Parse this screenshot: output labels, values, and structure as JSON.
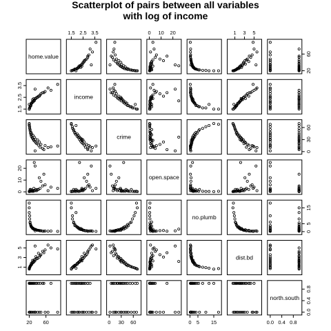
{
  "chart_data": {
    "type": "scatter",
    "subtype": "pairs-matrix",
    "title_lines": [
      "Scatterplot of pairs between all variables",
      "with log of income"
    ],
    "variables": [
      "home.value",
      "income",
      "crime",
      "open.space",
      "no.plumb",
      "dist.bd",
      "north.south"
    ],
    "axis_ranges": {
      "home.value": [
        16,
        92
      ],
      "income": [
        1.2,
        3.9
      ],
      "crime": [
        -3,
        76
      ],
      "open.space": [
        -1,
        26
      ],
      "no.plumb": [
        -1,
        19
      ],
      "dist.bd": [
        -0.3,
        6.3
      ],
      "north.south": [
        -0.05,
        1.05
      ]
    },
    "ticks": {
      "top": [
        {
          "var": "income",
          "values": [
            1.5,
            2.5,
            3.5
          ],
          "labels": [
            "1.5",
            "2.5",
            "3.5"
          ]
        },
        {
          "var": "open.space",
          "values": [
            0,
            10,
            20
          ],
          "labels": [
            "0",
            "10",
            "20"
          ]
        },
        {
          "var": "dist.bd",
          "values": [
            1,
            3,
            5
          ],
          "labels": [
            "1",
            "3",
            "5"
          ]
        }
      ],
      "bottom": [
        {
          "var": "home.value",
          "values": [
            20,
            60
          ],
          "labels": [
            "20",
            "60"
          ]
        },
        {
          "var": "crime",
          "values": [
            0,
            30,
            60
          ],
          "labels": [
            "0",
            "30",
            "60"
          ]
        },
        {
          "var": "no.plumb",
          "values": [
            0,
            5,
            15
          ],
          "labels": [
            "0",
            "5",
            "15"
          ]
        },
        {
          "var": "north.south",
          "values": [
            0.0,
            0.4,
            0.8
          ],
          "labels": [
            "0.0",
            "0.4",
            "0.8"
          ]
        }
      ],
      "left": [
        {
          "var": "income",
          "values": [
            1.5,
            2.5,
            3.5
          ],
          "labels": [
            "1.5",
            "2.5",
            "3.5"
          ]
        },
        {
          "var": "open.space",
          "values": [
            0,
            10,
            20
          ],
          "labels": [
            "0",
            "10",
            "20"
          ]
        },
        {
          "var": "dist.bd",
          "values": [
            1,
            3,
            5
          ],
          "labels": [
            "1",
            "3",
            "5"
          ]
        }
      ],
      "right": [
        {
          "var": "home.value",
          "values": [
            20,
            60
          ],
          "labels": [
            "20",
            "60"
          ]
        },
        {
          "var": "crime",
          "values": [
            0,
            30,
            60
          ],
          "labels": [
            "0",
            "30",
            "60"
          ]
        },
        {
          "var": "no.plumb",
          "values": [
            0,
            5,
            15
          ],
          "labels": [
            "0",
            "5",
            "15"
          ]
        },
        {
          "var": "north.south",
          "values": [
            0.0,
            0.4,
            0.8
          ],
          "labels": [
            "0.0",
            "0.4",
            "0.8"
          ]
        }
      ]
    },
    "grid": false,
    "legend": "none",
    "marker": "open-circle",
    "marker_color": "#000000",
    "observations": [
      {
        "home.value": 72,
        "income": 3.1,
        "crime": 12,
        "open.space": 4,
        "no.plumb": 0.4,
        "dist.bd": 5.0,
        "north.south": 1
      },
      {
        "home.value": 52,
        "income": 2.9,
        "crime": 8,
        "open.space": 5,
        "no.plumb": 0.3,
        "dist.bd": 4.3,
        "north.south": 1
      },
      {
        "home.value": 46,
        "income": 2.7,
        "crime": 11,
        "open.space": 3,
        "no.plumb": 0.5,
        "dist.bd": 3.4,
        "north.south": 1
      },
      {
        "home.value": 42,
        "income": 2.6,
        "crime": 16,
        "open.space": 2,
        "no.plumb": 0.8,
        "dist.bd": 3.9,
        "north.south": 1
      },
      {
        "home.value": 38,
        "income": 2.5,
        "crime": 20,
        "open.space": 1,
        "no.plumb": 1.0,
        "dist.bd": 2.9,
        "north.south": 1
      },
      {
        "home.value": 36,
        "income": 2.4,
        "crime": 22,
        "open.space": 2,
        "no.plumb": 1.2,
        "dist.bd": 3.2,
        "north.south": 1
      },
      {
        "home.value": 33,
        "income": 2.3,
        "crime": 26,
        "open.space": 1,
        "no.plumb": 1.3,
        "dist.bd": 2.6,
        "north.south": 1
      },
      {
        "home.value": 31,
        "income": 2.4,
        "crime": 28,
        "open.space": 3,
        "no.plumb": 1.5,
        "dist.bd": 2.3,
        "north.south": 1
      },
      {
        "home.value": 30,
        "income": 2.2,
        "crime": 30,
        "open.space": 0.5,
        "no.plumb": 1.8,
        "dist.bd": 2.1,
        "north.south": 1
      },
      {
        "home.value": 28,
        "income": 2.3,
        "crime": 33,
        "open.space": 1,
        "no.plumb": 2.0,
        "dist.bd": 2.4,
        "north.south": 1
      },
      {
        "home.value": 27,
        "income": 2.1,
        "crime": 35,
        "open.space": 0.5,
        "no.plumb": 2.5,
        "dist.bd": 2.0,
        "north.south": 1
      },
      {
        "home.value": 25,
        "income": 2.0,
        "crime": 38,
        "open.space": 1,
        "no.plumb": 3.0,
        "dist.bd": 1.8,
        "north.south": 1
      },
      {
        "home.value": 24,
        "income": 1.9,
        "crime": 42,
        "open.space": 2,
        "no.plumb": 3.5,
        "dist.bd": 1.5,
        "north.south": 1
      },
      {
        "home.value": 23,
        "income": 1.8,
        "crime": 46,
        "open.space": 1,
        "no.plumb": 4.5,
        "dist.bd": 1.3,
        "north.south": 1
      },
      {
        "home.value": 22,
        "income": 1.7,
        "crime": 52,
        "open.space": 0.5,
        "no.plumb": 5.5,
        "dist.bd": 1.2,
        "north.south": 1
      },
      {
        "home.value": 21,
        "income": 1.6,
        "crime": 58,
        "open.space": 0.5,
        "no.plumb": 8,
        "dist.bd": 1.0,
        "north.south": 1
      },
      {
        "home.value": 20,
        "income": 1.9,
        "crime": 65,
        "open.space": 0.3,
        "no.plumb": 12,
        "dist.bd": 0.8,
        "north.south": 1
      },
      {
        "home.value": 20,
        "income": 1.5,
        "crime": 70,
        "open.space": 0.2,
        "no.plumb": 15,
        "dist.bd": 0.6,
        "north.south": 1
      },
      {
        "home.value": 88,
        "income": 3.6,
        "crime": 14,
        "open.space": 3,
        "no.plumb": 0.2,
        "dist.bd": 4.8,
        "north.south": 0
      },
      {
        "home.value": 65,
        "income": 3.3,
        "crime": 10,
        "open.space": 1,
        "no.plumb": 0.3,
        "dist.bd": 5.6,
        "north.south": 0
      },
      {
        "home.value": 58,
        "income": 3.0,
        "crime": 15,
        "open.space": 6,
        "no.plumb": 0.4,
        "dist.bd": 4.6,
        "north.south": 0
      },
      {
        "home.value": 48,
        "income": 2.8,
        "crime": 18,
        "open.space": 9,
        "no.plumb": 0.6,
        "dist.bd": 3.6,
        "north.south": 0
      },
      {
        "home.value": 44,
        "income": 2.6,
        "crime": 24,
        "open.space": 12,
        "no.plumb": 0.7,
        "dist.bd": 3.1,
        "north.south": 0
      },
      {
        "home.value": 40,
        "income": 2.5,
        "crime": 29,
        "open.space": 2,
        "no.plumb": 0.9,
        "dist.bd": 2.8,
        "north.south": 0
      },
      {
        "home.value": 35,
        "income": 2.4,
        "crime": 31,
        "open.space": 1,
        "no.plumb": 1.4,
        "dist.bd": 2.5,
        "north.south": 0
      },
      {
        "home.value": 32,
        "income": 2.2,
        "crime": 36,
        "open.space": 25,
        "no.plumb": 1.6,
        "dist.bd": 2.2,
        "north.south": 0
      },
      {
        "home.value": 29,
        "income": 2.1,
        "crime": 40,
        "open.space": 0.5,
        "no.plumb": 2.2,
        "dist.bd": 1.9,
        "north.south": 0
      },
      {
        "home.value": 26,
        "income": 2.0,
        "crime": 44,
        "open.space": 1,
        "no.plumb": 2.8,
        "dist.bd": 1.6,
        "north.south": 0
      },
      {
        "home.value": 24,
        "income": 1.8,
        "crime": 48,
        "open.space": 0.5,
        "no.plumb": 3.8,
        "dist.bd": 1.4,
        "north.south": 0
      },
      {
        "home.value": 22,
        "income": 1.7,
        "crime": 55,
        "open.space": 2,
        "no.plumb": 6,
        "dist.bd": 1.1,
        "north.south": 0
      },
      {
        "home.value": 21,
        "income": 1.6,
        "crime": 62,
        "open.space": 0.3,
        "no.plumb": 10,
        "dist.bd": 0.9,
        "north.south": 0
      },
      {
        "home.value": 20,
        "income": 1.5,
        "crime": 68,
        "open.space": 0.5,
        "no.plumb": 18,
        "dist.bd": 0.7,
        "north.south": 0
      },
      {
        "home.value": 55,
        "income": 2.9,
        "crime": 5,
        "open.space": 15,
        "no.plumb": 0.3,
        "dist.bd": 4.0,
        "north.south": 1
      },
      {
        "home.value": 34,
        "income": 3.2,
        "crime": 2,
        "open.space": 22,
        "no.plumb": 0.5,
        "dist.bd": 5.4,
        "north.south": 0
      }
    ]
  }
}
